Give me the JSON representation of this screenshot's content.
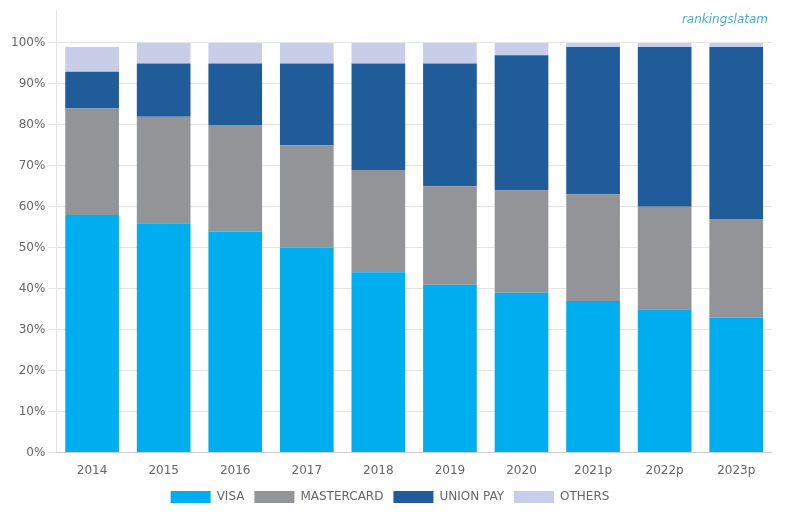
{
  "chart_data": {
    "type": "bar",
    "stacked": true,
    "categories": [
      "2014",
      "2015",
      "2016",
      "2017",
      "2018",
      "2019",
      "2020",
      "2021p",
      "2022p",
      "2023p"
    ],
    "series": [
      {
        "name": "VISA",
        "color": "#00AEEF",
        "values": [
          58,
          56,
          54,
          50,
          44,
          41,
          39,
          37,
          35,
          33
        ]
      },
      {
        "name": "MASTERCARD",
        "color": "#929497",
        "values": [
          26,
          26,
          26,
          25,
          25,
          24,
          25,
          26,
          25,
          24
        ]
      },
      {
        "name": "UNION PAY",
        "color": "#1F5C99",
        "values": [
          9,
          13,
          15,
          20,
          26,
          30,
          33,
          36,
          39,
          42
        ]
      },
      {
        "name": "OTHERS",
        "color": "#C8CDE8",
        "values": [
          6,
          5,
          5,
          5,
          5,
          5,
          3,
          1,
          1,
          1
        ]
      }
    ],
    "ylim": [
      0,
      108
    ],
    "yticks": [
      {
        "value": 0,
        "label": "0%"
      },
      {
        "value": 10,
        "label": "10%"
      },
      {
        "value": 20,
        "label": "20%"
      },
      {
        "value": 30,
        "label": "30%"
      },
      {
        "value": 40,
        "label": "40%"
      },
      {
        "value": 50,
        "label": "50%"
      },
      {
        "value": 60,
        "label": "60%"
      },
      {
        "value": 70,
        "label": "70%"
      },
      {
        "value": 80,
        "label": "80%"
      },
      {
        "value": 90,
        "label": "90%"
      },
      {
        "value": 100,
        "label": "100%"
      }
    ],
    "grid": true,
    "legend": "bottom",
    "annotations": [
      {
        "text": "rankingslatam",
        "color": "#4BAAD3"
      }
    ]
  }
}
